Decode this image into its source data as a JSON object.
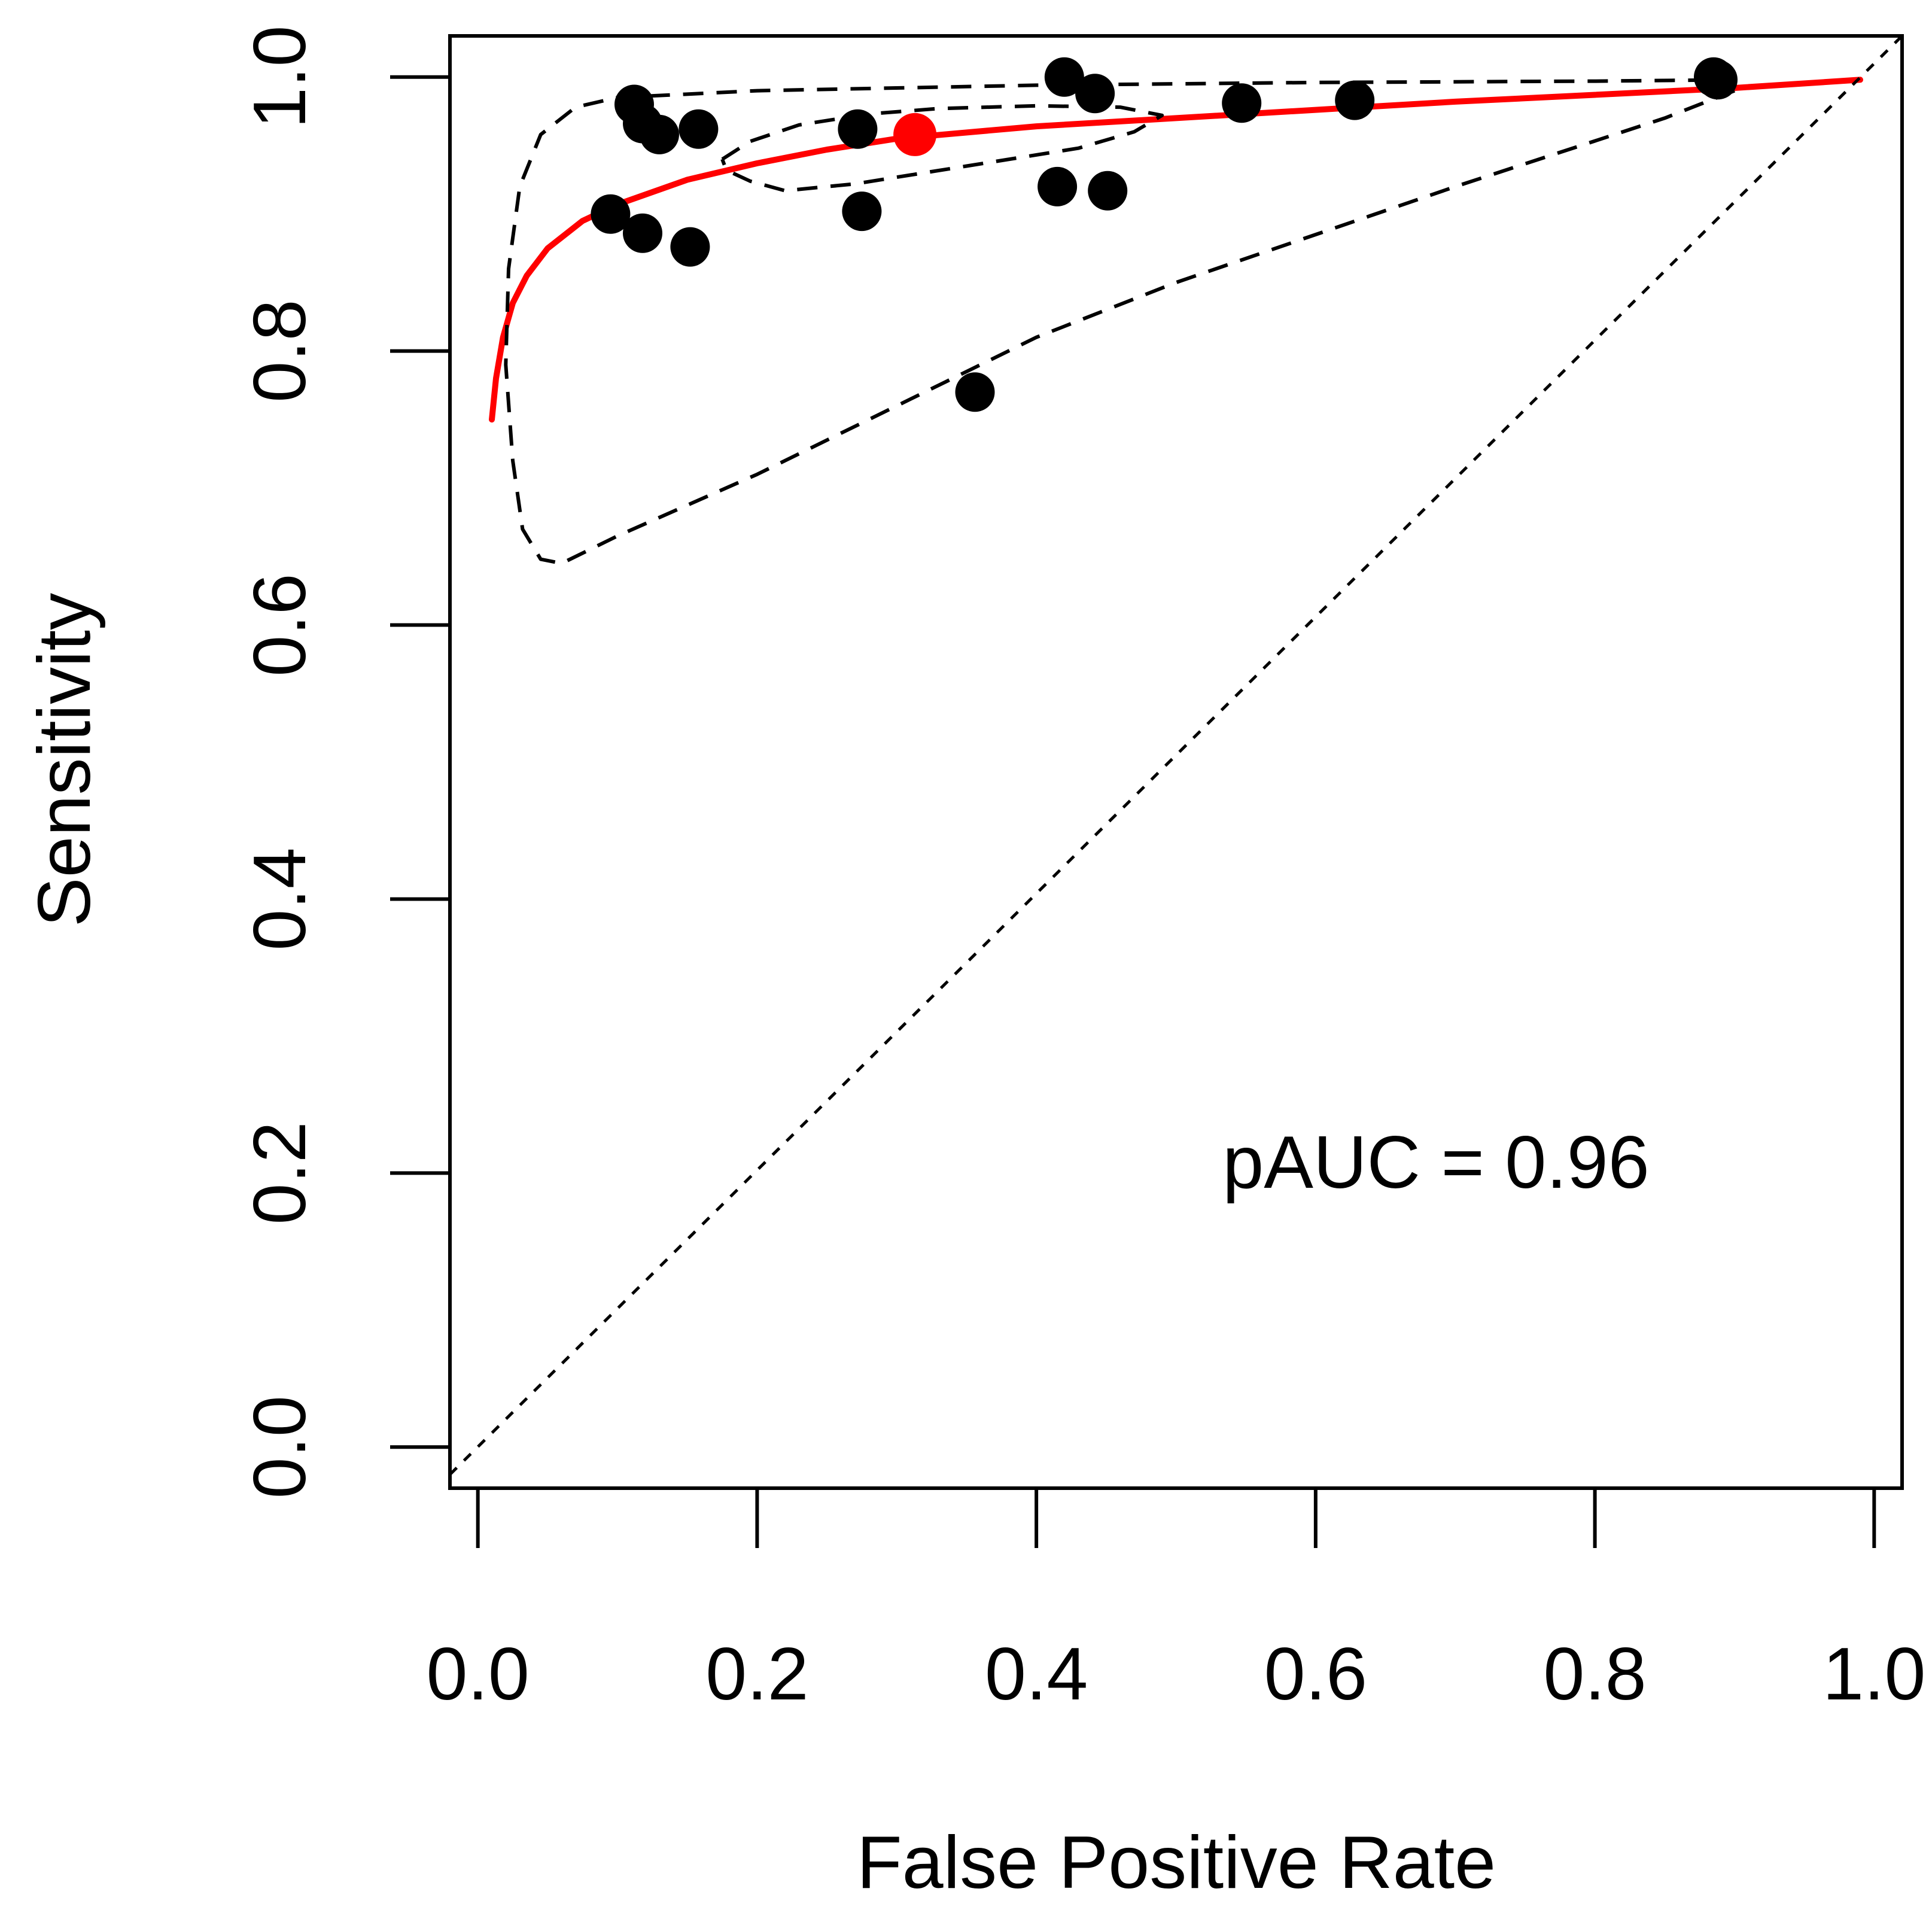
{
  "chart_data": {
    "type": "scatter",
    "title": "",
    "xlabel": "False Positive Rate",
    "ylabel": "Sensitivity",
    "xlim": [
      -0.02,
      1.02
    ],
    "ylim": [
      -0.03,
      1.03
    ],
    "xticks": [
      0.0,
      0.2,
      0.4,
      0.6,
      0.8,
      1.0
    ],
    "xtick_labels": [
      "0.0",
      "0.2",
      "0.4",
      "0.6",
      "0.8",
      "1.0"
    ],
    "yticks": [
      0.0,
      0.2,
      0.4,
      0.6,
      0.8,
      1.0
    ],
    "ytick_labels": [
      "0.0",
      "0.2",
      "0.4",
      "0.6",
      "0.8",
      "1.0"
    ],
    "annotation": "pAUC = 0.96",
    "grid": false,
    "series": [
      {
        "name": "Study estimates",
        "kind": "points",
        "color": "#000000",
        "points": [
          [
            0.112,
            0.98
          ],
          [
            0.118,
            0.966
          ],
          [
            0.13,
            0.958
          ],
          [
            0.158,
            0.962
          ],
          [
            0.095,
            0.9
          ],
          [
            0.118,
            0.886
          ],
          [
            0.152,
            0.876
          ],
          [
            0.272,
            0.962
          ],
          [
            0.275,
            0.902
          ],
          [
            0.42,
            1.0
          ],
          [
            0.442,
            0.988
          ],
          [
            0.415,
            0.92
          ],
          [
            0.451,
            0.917
          ],
          [
            0.547,
            0.981
          ],
          [
            0.628,
            0.983
          ],
          [
            0.356,
            0.77
          ],
          [
            0.885,
            1.0
          ],
          [
            0.888,
            0.998
          ]
        ]
      },
      {
        "name": "Summary operating point",
        "kind": "points",
        "color": "#ff0000",
        "points": [
          [
            0.313,
            0.958
          ]
        ]
      },
      {
        "name": "SROC curve",
        "kind": "line",
        "color": "#ff0000",
        "points": [
          [
            0.01,
            0.75
          ],
          [
            0.013,
            0.78
          ],
          [
            0.018,
            0.81
          ],
          [
            0.025,
            0.835
          ],
          [
            0.035,
            0.855
          ],
          [
            0.05,
            0.875
          ],
          [
            0.075,
            0.895
          ],
          [
            0.1,
            0.907
          ],
          [
            0.15,
            0.925
          ],
          [
            0.2,
            0.937
          ],
          [
            0.25,
            0.947
          ],
          [
            0.3,
            0.955
          ],
          [
            0.4,
            0.964
          ],
          [
            0.5,
            0.97
          ],
          [
            0.6,
            0.976
          ],
          [
            0.7,
            0.982
          ],
          [
            0.8,
            0.987
          ],
          [
            0.9,
            0.992
          ],
          [
            0.99,
            0.998
          ]
        ]
      },
      {
        "name": "Confidence region",
        "kind": "line",
        "style": "dashed",
        "color": "#000000",
        "points": [
          [
            0.175,
            0.94
          ],
          [
            0.195,
            0.953
          ],
          [
            0.23,
            0.965
          ],
          [
            0.28,
            0.973
          ],
          [
            0.33,
            0.977
          ],
          [
            0.4,
            0.979
          ],
          [
            0.46,
            0.978
          ],
          [
            0.49,
            0.972
          ],
          [
            0.47,
            0.96
          ],
          [
            0.43,
            0.948
          ],
          [
            0.35,
            0.935
          ],
          [
            0.27,
            0.922
          ],
          [
            0.22,
            0.917
          ],
          [
            0.195,
            0.924
          ],
          [
            0.178,
            0.932
          ],
          [
            0.175,
            0.94
          ]
        ]
      },
      {
        "name": "Prediction region",
        "kind": "line",
        "style": "dashed",
        "color": "#000000",
        "points": [
          [
            0.9,
            0.99
          ],
          [
            0.85,
            0.97
          ],
          [
            0.7,
            0.92
          ],
          [
            0.6,
            0.885
          ],
          [
            0.5,
            0.85
          ],
          [
            0.4,
            0.81
          ],
          [
            0.3,
            0.76
          ],
          [
            0.2,
            0.71
          ],
          [
            0.1,
            0.665
          ],
          [
            0.06,
            0.645
          ],
          [
            0.045,
            0.648
          ],
          [
            0.032,
            0.67
          ],
          [
            0.025,
            0.72
          ],
          [
            0.02,
            0.79
          ],
          [
            0.022,
            0.86
          ],
          [
            0.03,
            0.92
          ],
          [
            0.045,
            0.958
          ],
          [
            0.07,
            0.978
          ],
          [
            0.1,
            0.985
          ],
          [
            0.2,
            0.99
          ],
          [
            0.4,
            0.994
          ],
          [
            0.6,
            0.996
          ],
          [
            0.8,
            0.997
          ],
          [
            0.9,
            0.998
          ]
        ]
      },
      {
        "name": "Chance line",
        "kind": "line",
        "style": "dotted",
        "color": "#000000",
        "points": [
          [
            -0.02,
            -0.02
          ],
          [
            1.02,
            1.03
          ]
        ]
      }
    ]
  }
}
